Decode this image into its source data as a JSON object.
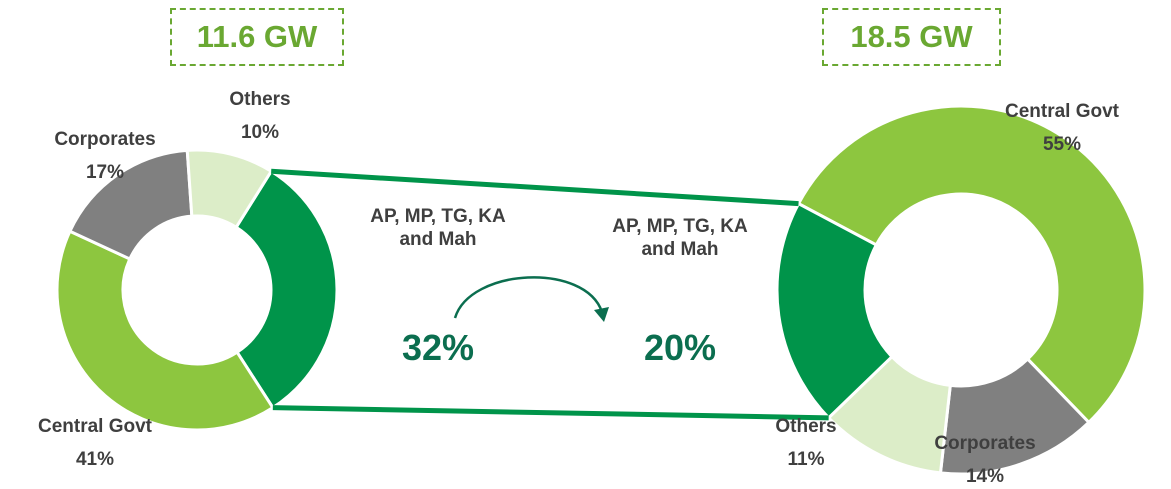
{
  "chart_data": [
    {
      "type": "pie",
      "title": "11.6 GW",
      "categories": [
        "AP, MP, TG, KA and Mah",
        "Central Govt",
        "Corporates",
        "Others"
      ],
      "values": [
        32,
        41,
        17,
        10
      ],
      "value_labels": [
        "32%",
        "41%",
        "17%",
        "10%"
      ],
      "colors": [
        "#00944a",
        "#8dc63f",
        "#808080",
        "#dcedc8"
      ]
    },
    {
      "type": "pie",
      "title": "18.5 GW",
      "categories": [
        "Central Govt",
        "Corporates",
        "Others",
        "AP, MP, TG, KA and Mah"
      ],
      "values": [
        55,
        14,
        11,
        20
      ],
      "value_labels": [
        "55%",
        "14%",
        "11%",
        "20%"
      ],
      "colors": [
        "#8dc63f",
        "#808080",
        "#dcedc8",
        "#00944a"
      ]
    }
  ]
}
